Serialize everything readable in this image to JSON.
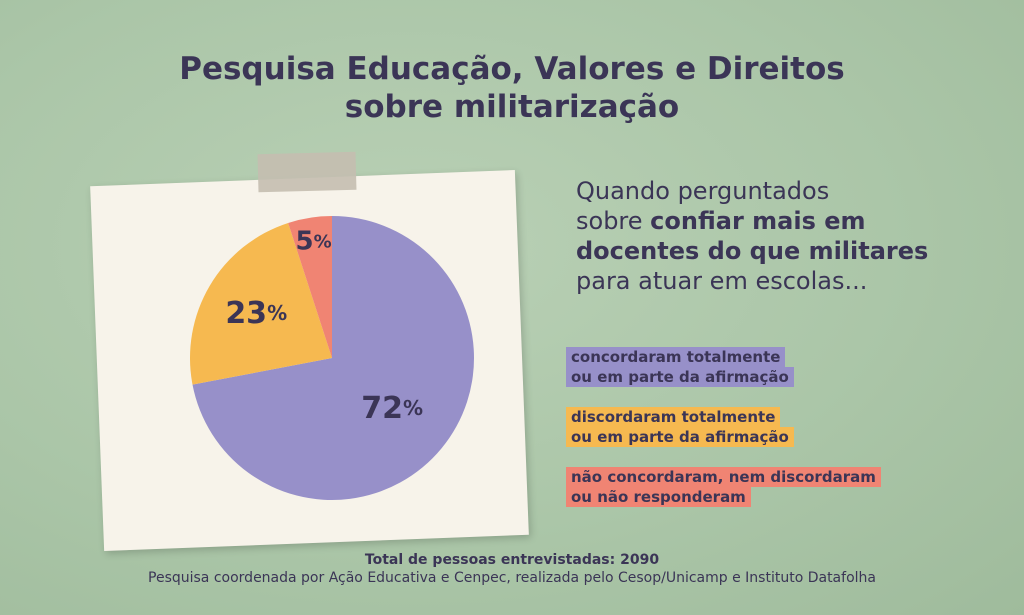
{
  "title": {
    "line1": "Pesquisa Educação, Valores e Direitos",
    "line2": "sobre militarização"
  },
  "question": {
    "line1": "Quando perguntados",
    "line2_prefix": "sobre ",
    "line2_bold": "confiar mais em",
    "line3_bold": "docentes do que militares",
    "line4": "para atuar em escolas..."
  },
  "legend": [
    {
      "line1": "concordaram totalmente",
      "line2": "ou em parte da afirmação",
      "color": "#9790c9"
    },
    {
      "line1": "discordaram totalmente",
      "line2": "ou em parte da afirmação",
      "color": "#f6b950"
    },
    {
      "line1": "não concordaram, nem discordaram",
      "line2": "ou não responderam",
      "color": "#f08473"
    }
  ],
  "chart_data": {
    "type": "pie",
    "slices": [
      {
        "label": "concordaram totalmente ou em parte da afirmação",
        "value": 72,
        "display": "72",
        "color": "#9790c9"
      },
      {
        "label": "discordaram totalmente ou em parte da afirmação",
        "value": 23,
        "display": "23",
        "color": "#f6b950"
      },
      {
        "label": "não concordaram, nem discordaram ou não responderam",
        "value": 5,
        "display": "5",
        "color": "#f08473"
      }
    ],
    "unit": "%"
  },
  "footer": {
    "total": "Total de pessoas entrevistadas: 2090",
    "credit": "Pesquisa coordenada por Ação Educativa e Cenpec, realizada pelo Cesop/Unicamp e Instituto Datafolha"
  }
}
